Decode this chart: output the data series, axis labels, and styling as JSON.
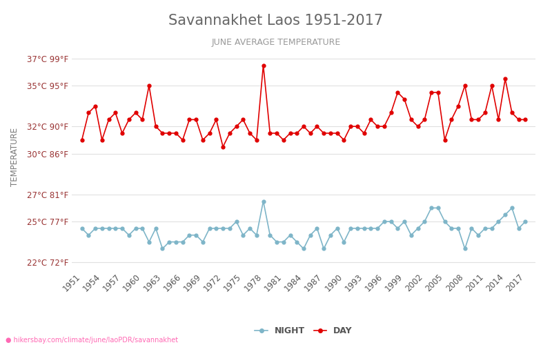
{
  "title": "Savannakhet Laos 1951-2017",
  "subtitle": "JUNE AVERAGE TEMPERATURE",
  "ylabel": "TEMPERATURE",
  "footer": "hikersbay.com/climate/june/laoPDR/savannakhet",
  "years": [
    1951,
    1952,
    1953,
    1954,
    1955,
    1956,
    1957,
    1958,
    1959,
    1960,
    1961,
    1962,
    1963,
    1964,
    1965,
    1966,
    1967,
    1968,
    1969,
    1970,
    1971,
    1972,
    1973,
    1974,
    1975,
    1976,
    1977,
    1978,
    1979,
    1980,
    1981,
    1982,
    1983,
    1984,
    1985,
    1986,
    1987,
    1988,
    1989,
    1990,
    1991,
    1992,
    1993,
    1994,
    1995,
    1996,
    1997,
    1998,
    1999,
    2000,
    2001,
    2002,
    2003,
    2004,
    2005,
    2006,
    2007,
    2008,
    2009,
    2010,
    2011,
    2012,
    2013,
    2014,
    2015,
    2016,
    2017
  ],
  "day": [
    31.0,
    33.0,
    33.5,
    31.0,
    32.5,
    33.0,
    31.5,
    32.5,
    33.0,
    32.5,
    35.0,
    32.0,
    31.5,
    31.5,
    31.5,
    31.0,
    32.5,
    32.5,
    31.0,
    31.5,
    32.5,
    30.5,
    31.5,
    32.0,
    32.5,
    31.5,
    31.0,
    36.5,
    31.5,
    31.5,
    31.0,
    31.5,
    31.5,
    32.0,
    31.5,
    32.0,
    31.5,
    31.5,
    31.5,
    31.0,
    32.0,
    32.0,
    31.5,
    32.5,
    32.0,
    32.0,
    33.0,
    34.5,
    34.0,
    32.5,
    32.0,
    32.5,
    34.5,
    34.5,
    31.0,
    32.5,
    33.5,
    35.0,
    32.5,
    32.5,
    33.0,
    35.0,
    32.5,
    35.5,
    33.0,
    32.5,
    32.5
  ],
  "night": [
    24.5,
    24.0,
    24.5,
    24.5,
    24.5,
    24.5,
    24.5,
    24.0,
    24.5,
    24.5,
    23.5,
    24.5,
    23.0,
    23.5,
    23.5,
    23.5,
    24.0,
    24.0,
    23.5,
    24.5,
    24.5,
    24.5,
    24.5,
    25.0,
    24.0,
    24.5,
    24.0,
    26.5,
    24.0,
    23.5,
    23.5,
    24.0,
    23.5,
    23.0,
    24.0,
    24.5,
    23.0,
    24.0,
    24.5,
    23.5,
    24.5,
    24.5,
    24.5,
    24.5,
    24.5,
    25.0,
    25.0,
    24.5,
    25.0,
    24.0,
    24.5,
    25.0,
    26.0,
    26.0,
    25.0,
    24.5,
    24.5,
    23.0,
    24.5,
    24.0,
    24.5,
    24.5,
    25.0,
    25.5,
    26.0,
    24.5,
    25.0
  ],
  "day_color": "#e00000",
  "night_color": "#7eb5c8",
  "background_color": "#ffffff",
  "grid_color": "#e0e0e0",
  "title_color": "#666666",
  "subtitle_color": "#999999",
  "ylabel_color": "#7a7a7a",
  "tick_label_color": "#993333",
  "yticks_c": [
    22,
    25,
    27,
    30,
    32,
    35,
    37
  ],
  "yticks_f": [
    72,
    77,
    81,
    86,
    90,
    95,
    99
  ],
  "ylim": [
    21.5,
    38.0
  ],
  "legend_night": "NIGHT",
  "legend_day": "DAY"
}
